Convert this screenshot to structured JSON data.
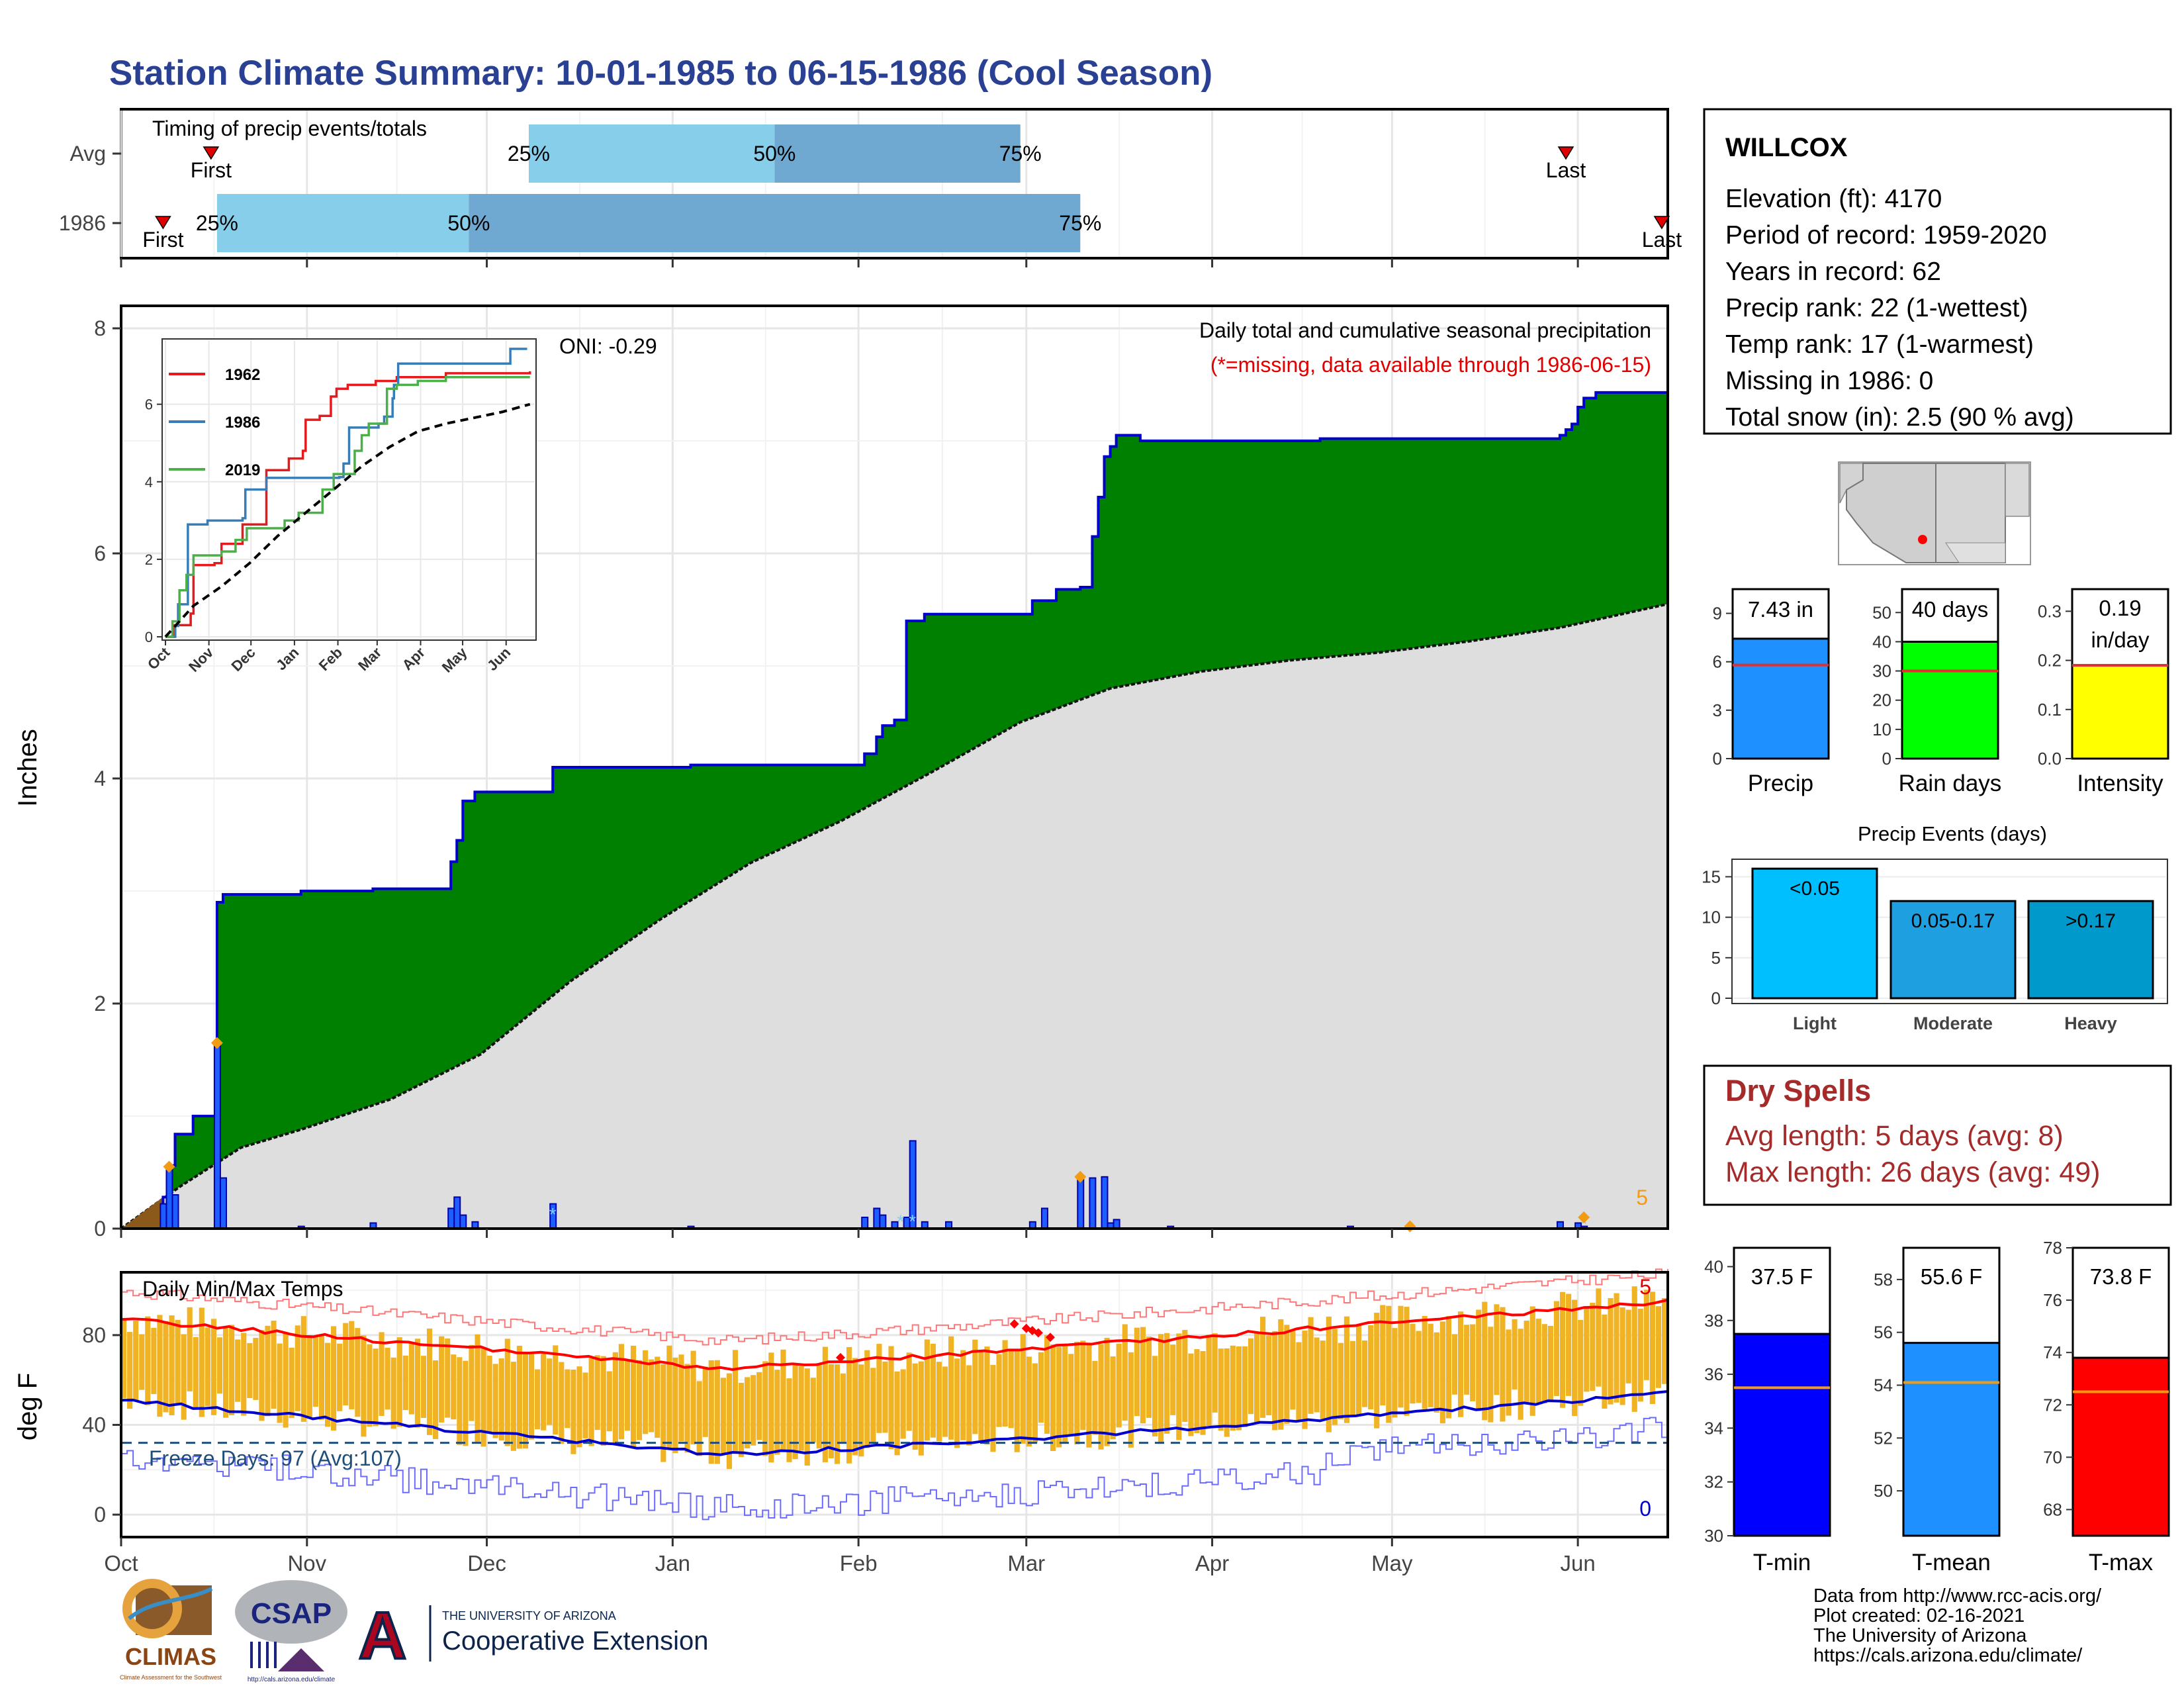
{
  "page_title": "Station Climate Summary: 10-01-1985 to 06-15-1986 (Cool Season)",
  "chart_data": [
    {
      "id": "timing",
      "type": "bar",
      "title": "Timing of precip events/totals",
      "rows": [
        {
          "label": "Avg",
          "first": "First",
          "last": "Last",
          "p25": "25%",
          "p50": "50%",
          "p75": "75%",
          "first_day": 15,
          "d25": 68,
          "d50": 109,
          "d75": 150,
          "last_day": 241
        },
        {
          "label": "1986",
          "first": "First",
          "last": "Last",
          "p25": "25%",
          "p50": "50%",
          "p75": "75%",
          "first_day": 7,
          "d25": 16,
          "d50": 58,
          "d75": 160,
          "last_day": 257
        }
      ],
      "colors": {
        "light": "#87ceeb",
        "mid": "#6fa8d0",
        "marker": "#e00000"
      }
    },
    {
      "id": "precip",
      "type": "area",
      "title": "Daily total and cumulative seasonal precipitation",
      "subtitle": "(*=missing, data available through 1986-06-15)",
      "oni": "ONI: -0.29",
      "ylabel": "Inches",
      "ylim": [
        0,
        8
      ],
      "yticks": [
        "0",
        "2",
        "4",
        "6",
        "8"
      ],
      "xticks": [
        "Oct",
        "Nov",
        "Dec",
        "Jan",
        "Feb",
        "Mar",
        "Apr",
        "May",
        "Jun"
      ],
      "xtick_days": [
        0,
        31,
        61,
        92,
        123,
        151,
        182,
        212,
        243
      ],
      "corner_label": "5",
      "cum_1986": [
        [
          0,
          0
        ],
        [
          7,
          0.28
        ],
        [
          8,
          0.56
        ],
        [
          9,
          0.84
        ],
        [
          12,
          1.0
        ],
        [
          16,
          1.22
        ],
        [
          16,
          2.9
        ],
        [
          17,
          2.97
        ],
        [
          30,
          3.0
        ],
        [
          42,
          3.02
        ],
        [
          55,
          3.06
        ],
        [
          55,
          3.26
        ],
        [
          56,
          3.45
        ],
        [
          57,
          3.8
        ],
        [
          59,
          3.88
        ],
        [
          72,
          3.9
        ],
        [
          72,
          4.1
        ],
        [
          94,
          4.1
        ],
        [
          95,
          4.12
        ],
        [
          124,
          4.12
        ],
        [
          124,
          4.22
        ],
        [
          126,
          4.37
        ],
        [
          127,
          4.47
        ],
        [
          129,
          4.52
        ],
        [
          131,
          4.9
        ],
        [
          131,
          5.4
        ],
        [
          134,
          5.46
        ],
        [
          152,
          5.5
        ],
        [
          152,
          5.58
        ],
        [
          156,
          5.68
        ],
        [
          160,
          5.7
        ],
        [
          162,
          6.15
        ],
        [
          163,
          6.5
        ],
        [
          164,
          6.86
        ],
        [
          165,
          6.95
        ],
        [
          166,
          7.05
        ],
        [
          170,
          7.0
        ],
        [
          200,
          7.02
        ],
        [
          240,
          7.05
        ],
        [
          241,
          7.1
        ],
        [
          242,
          7.15
        ],
        [
          243,
          7.3
        ],
        [
          244,
          7.38
        ],
        [
          246,
          7.43
        ],
        [
          258,
          7.43
        ]
      ],
      "avg_cum": [
        [
          0,
          0
        ],
        [
          10,
          0.38
        ],
        [
          20,
          0.72
        ],
        [
          30,
          0.88
        ],
        [
          45,
          1.15
        ],
        [
          60,
          1.55
        ],
        [
          75,
          2.2
        ],
        [
          90,
          2.75
        ],
        [
          105,
          3.25
        ],
        [
          120,
          3.62
        ],
        [
          135,
          4.05
        ],
        [
          150,
          4.5
        ],
        [
          165,
          4.8
        ],
        [
          180,
          4.95
        ],
        [
          195,
          5.05
        ],
        [
          210,
          5.12
        ],
        [
          225,
          5.22
        ],
        [
          240,
          5.34
        ],
        [
          258,
          5.55
        ]
      ],
      "daily": [
        [
          7,
          0.22
        ],
        [
          8,
          0.55
        ],
        [
          9,
          0.3
        ],
        [
          16,
          1.65
        ],
        [
          17,
          0.45
        ],
        [
          30,
          0.02
        ],
        [
          42,
          0.05
        ],
        [
          55,
          0.18
        ],
        [
          56,
          0.28
        ],
        [
          57,
          0.12
        ],
        [
          59,
          0.06
        ],
        [
          72,
          0.22
        ],
        [
          95,
          0.02
        ],
        [
          124,
          0.1
        ],
        [
          126,
          0.18
        ],
        [
          127,
          0.12
        ],
        [
          129,
          0.06
        ],
        [
          131,
          0.1
        ],
        [
          132,
          0.78
        ],
        [
          134,
          0.06
        ],
        [
          138,
          0.06
        ],
        [
          152,
          0.06
        ],
        [
          154,
          0.18
        ],
        [
          160,
          0.46
        ],
        [
          162,
          0.45
        ],
        [
          164,
          0.46
        ],
        [
          165,
          0.05
        ],
        [
          166,
          0.08
        ],
        [
          175,
          0.02
        ],
        [
          205,
          0.02
        ],
        [
          240,
          0.06
        ],
        [
          243,
          0.05
        ],
        [
          244,
          0.02
        ]
      ],
      "missing_marks": [
        [
          72,
          0.14
        ],
        [
          130,
          0.08
        ],
        [
          132,
          0.08
        ],
        [
          244,
          0.06
        ]
      ],
      "snow_marks": [
        [
          8,
          0.55
        ],
        [
          16,
          1.65
        ],
        [
          160,
          0.46
        ],
        [
          215,
          0.02
        ],
        [
          244,
          0.1
        ]
      ],
      "colors": {
        "fill_1986": "#008000",
        "avg_fill": "#dedede",
        "outline": "#0000cd",
        "bar": "#1e5eff",
        "diamond": "#f39c12",
        "early_fill": "#8b5a1a"
      }
    },
    {
      "id": "inset",
      "type": "line",
      "ylim": [
        0,
        7.5
      ],
      "yticks": [
        "0",
        "2",
        "4",
        "6"
      ],
      "xticks": [
        "Oct",
        "Nov",
        "Dec",
        "Jan",
        "Feb",
        "Mar",
        "Apr",
        "May",
        "Jun"
      ],
      "series": [
        {
          "name": "1962",
          "color": "#e41a1c",
          "points": [
            [
              0,
              0
            ],
            [
              6,
              0.3
            ],
            [
              10,
              0.3
            ],
            [
              18,
              0.6
            ],
            [
              20,
              1.85
            ],
            [
              35,
              1.9
            ],
            [
              40,
              2.4
            ],
            [
              55,
              2.9
            ],
            [
              60,
              2.9
            ],
            [
              72,
              4.3
            ],
            [
              88,
              4.6
            ],
            [
              98,
              4.8
            ],
            [
              100,
              5.6
            ],
            [
              110,
              5.7
            ],
            [
              118,
              6.2
            ],
            [
              122,
              6.4
            ],
            [
              130,
              6.5
            ],
            [
              150,
              6.6
            ],
            [
              165,
              6.7
            ],
            [
              200,
              6.8
            ],
            [
              260,
              6.85
            ]
          ]
        },
        {
          "name": "1986",
          "color": "#377eb8",
          "points": [
            [
              0,
              0
            ],
            [
              7,
              0.28
            ],
            [
              9,
              0.84
            ],
            [
              16,
              1.22
            ],
            [
              16,
              2.9
            ],
            [
              30,
              3.0
            ],
            [
              55,
              3.06
            ],
            [
              57,
              3.8
            ],
            [
              72,
              3.9
            ],
            [
              72,
              4.1
            ],
            [
              124,
              4.12
            ],
            [
              127,
              4.47
            ],
            [
              131,
              5.4
            ],
            [
              152,
              5.5
            ],
            [
              156,
              5.68
            ],
            [
              162,
              6.15
            ],
            [
              163,
              6.5
            ],
            [
              166,
              7.05
            ],
            [
              240,
              7.05
            ],
            [
              246,
              7.43
            ],
            [
              258,
              7.43
            ]
          ]
        },
        {
          "name": "2019",
          "color": "#4daf4a",
          "points": [
            [
              0,
              0
            ],
            [
              5,
              0.4
            ],
            [
              10,
              1.2
            ],
            [
              15,
              1.6
            ],
            [
              20,
              2.1
            ],
            [
              40,
              2.2
            ],
            [
              50,
              2.5
            ],
            [
              58,
              2.8
            ],
            [
              85,
              3.0
            ],
            [
              95,
              3.2
            ],
            [
              112,
              3.8
            ],
            [
              120,
              4.2
            ],
            [
              135,
              4.8
            ],
            [
              140,
              5.2
            ],
            [
              145,
              5.5
            ],
            [
              152,
              5.5
            ],
            [
              158,
              6.4
            ],
            [
              165,
              6.5
            ],
            [
              180,
              6.6
            ],
            [
              200,
              6.7
            ],
            [
              260,
              6.7
            ]
          ]
        },
        {
          "name": "",
          "color": "#000000",
          "dashed": true,
          "points": [
            [
              0,
              0
            ],
            [
              20,
              0.8
            ],
            [
              40,
              1.3
            ],
            [
              60,
              1.9
            ],
            [
              80,
              2.6
            ],
            [
              100,
              3.2
            ],
            [
              120,
              3.8
            ],
            [
              140,
              4.4
            ],
            [
              160,
              4.9
            ],
            [
              180,
              5.3
            ],
            [
              200,
              5.5
            ],
            [
              220,
              5.65
            ],
            [
              240,
              5.8
            ],
            [
              260,
              6.0
            ]
          ]
        }
      ]
    },
    {
      "id": "temps",
      "type": "bar",
      "title": "Daily Min/Max Temps",
      "ylabel": "deg F",
      "ylim": [
        -10,
        108
      ],
      "yticks": [
        "0",
        "40",
        "80"
      ],
      "xticks": [
        "Oct",
        "Nov",
        "Dec",
        "Jan",
        "Feb",
        "Mar",
        "Apr",
        "May",
        "Jun"
      ],
      "freeze_label": "Freeze Days: 97 (Avg:107)",
      "freeze_line": 32,
      "max_count_label": "5",
      "min_count_label": "0",
      "record_marks": [
        [
          120,
          70
        ],
        [
          149,
          85
        ],
        [
          151,
          83
        ],
        [
          153,
          81
        ],
        [
          152,
          82
        ],
        [
          155,
          79
        ]
      ],
      "colors": {
        "bar": "#f0b323",
        "avg_max": "#ff0000",
        "avg_min": "#0000cd",
        "rec_max": "#ff7777",
        "rec_min": "#6b6bff",
        "freeze": "#1f4e79"
      }
    },
    {
      "id": "annual",
      "type": "bar",
      "panels": [
        {
          "name": "Precip",
          "value_label": "7.43 in",
          "value": 7.43,
          "avg": 5.8,
          "ymax": 10.5,
          "ticks": [
            0,
            3,
            6,
            9
          ],
          "color": "#1e90ff"
        },
        {
          "name": "Rain days",
          "value_label": "40 days",
          "value": 40,
          "avg": 30,
          "ymax": 58,
          "ticks": [
            0,
            10,
            20,
            30,
            40,
            50
          ],
          "color": "#00ff00"
        },
        {
          "name": "Intensity",
          "value_label": "0.19",
          "value_label2": "in/day",
          "value": 0.19,
          "avg": 0.19,
          "ymax": 0.345,
          "ticks": [
            "0.0",
            "0.1",
            "0.2",
            "0.3"
          ],
          "color": "#ffff00"
        }
      ]
    },
    {
      "id": "events",
      "type": "bar",
      "title": "Precip Events (days)",
      "categories": [
        "Light",
        "Moderate",
        "Heavy"
      ],
      "bar_labels": [
        "<0.05",
        "0.05-0.17",
        ">0.17"
      ],
      "values": [
        16,
        12,
        12
      ],
      "ylim": [
        0,
        17
      ],
      "yticks": [
        0,
        5,
        10,
        15
      ],
      "colors": [
        "#00bfff",
        "#1e9fe0",
        "#0099cc"
      ]
    },
    {
      "id": "temp_summary",
      "type": "bar",
      "panels": [
        {
          "name": "T-min",
          "value_label": "37.5 F",
          "value": 37.5,
          "avg": 35.5,
          "ymin": 30,
          "ymax": 40.7,
          "ticks": [
            30,
            32,
            34,
            36,
            38,
            40
          ],
          "color": "#0000ff"
        },
        {
          "name": "T-mean",
          "value_label": "55.6 F",
          "value": 55.6,
          "avg": 54.1,
          "ymin": 48.3,
          "ymax": 59.2,
          "ticks": [
            50,
            52,
            54,
            56,
            58
          ],
          "color": "#1e90ff"
        },
        {
          "name": "T-max",
          "value_label": "73.8 F",
          "value": 73.8,
          "avg": 72.5,
          "ymin": 67,
          "ymax": 78,
          "ticks": [
            68,
            70,
            72,
            74,
            76,
            78
          ],
          "color": "#ff0000"
        }
      ]
    }
  ],
  "station": {
    "name": "WILLCOX",
    "elevation": "Elevation (ft): 4170",
    "period": "Period of record: 1959-2020",
    "years": "Years in record: 62",
    "precip_rank": "Precip rank: 22 (1-wettest)",
    "temp_rank": "Temp rank: 17 (1-warmest)",
    "missing": "Missing in 1986: 0",
    "snow": "Total snow (in): 2.5 (90 % avg)"
  },
  "dry_spells": {
    "title": "Dry Spells",
    "avg": "Avg length: 5 days (avg: 8)",
    "max": "Max length: 26 days (avg: 49)"
  },
  "footer": {
    "line1": "Data from http://www.rcc-acis.org/",
    "line2": "Plot created: 02-16-2021",
    "line3": "The University of Arizona",
    "line4": "https://cals.arizona.edu/climate/"
  },
  "logos": {
    "climas": "CLIMAS",
    "climas_sub": "Climate Assessment for the Southwest",
    "csap": "CSAP",
    "csap_url": "http://cals.arizona.edu/climate",
    "ua_top": "THE UNIVERSITY OF ARIZONA",
    "ua_main": "Cooperative Extension"
  }
}
